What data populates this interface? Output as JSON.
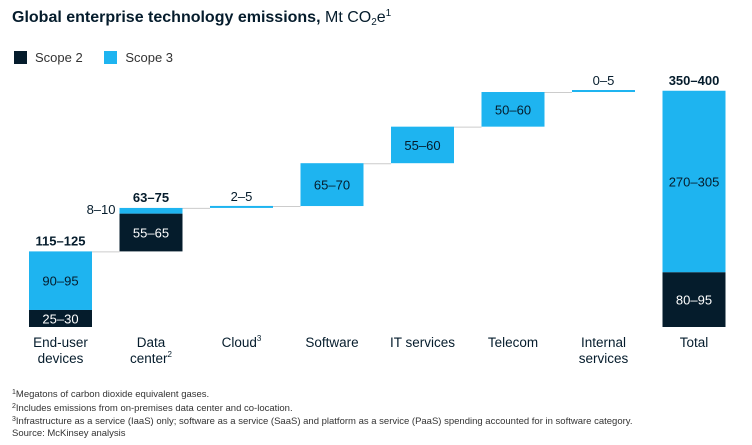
{
  "title": {
    "bold": "Global enterprise technology emissions,",
    "unit_pre": "Mt CO",
    "unit_sub": "2",
    "unit_post": "e",
    "unit_sup": "1"
  },
  "colors": {
    "scope2": "#051c2c",
    "scope3": "#1eb4f0",
    "label_on_dark": "#ffffff",
    "label_on_light": "#051c2c",
    "text": "#051c2c",
    "connector": "#cccccc"
  },
  "chart_data": {
    "type": "bar",
    "subtype": "waterfall",
    "ylim": [
      0,
      400
    ],
    "legend": {
      "placement": "top-left",
      "entries": [
        {
          "key": "scope2",
          "label": "Scope 2"
        },
        {
          "key": "scope3",
          "label": "Scope 3"
        }
      ]
    },
    "categories": [
      {
        "id": "end-user-devices",
        "label_lines": [
          "End-user",
          "devices"
        ],
        "label_sup": "",
        "total_label": "115–125",
        "segments": [
          {
            "series": "scope2",
            "from": 0,
            "to": 27,
            "label": "25–30"
          },
          {
            "series": "scope3",
            "from": 27,
            "to": 120,
            "label": "90–95"
          }
        ]
      },
      {
        "id": "data-center",
        "label_lines": [
          "Data",
          "center"
        ],
        "label_sup": "2",
        "total_label": "63–75",
        "side_label": "8–10",
        "segments": [
          {
            "series": "scope2",
            "from": 120,
            "to": 180,
            "label": "55–65"
          },
          {
            "series": "scope3",
            "from": 180,
            "to": 189,
            "label": ""
          }
        ]
      },
      {
        "id": "cloud",
        "label_lines": [
          "Cloud"
        ],
        "label_sup": "3",
        "segments": [
          {
            "series": "scope3",
            "from": 189,
            "to": 192,
            "label": "2–5"
          }
        ]
      },
      {
        "id": "software",
        "label_lines": [
          "Software"
        ],
        "label_sup": "",
        "segments": [
          {
            "series": "scope3",
            "from": 192,
            "to": 260,
            "label": "65–70"
          }
        ]
      },
      {
        "id": "it-services",
        "label_lines": [
          "IT services"
        ],
        "label_sup": "",
        "segments": [
          {
            "series": "scope3",
            "from": 260,
            "to": 318,
            "label": "55–60"
          }
        ]
      },
      {
        "id": "telecom",
        "label_lines": [
          "Telecom"
        ],
        "label_sup": "",
        "segments": [
          {
            "series": "scope3",
            "from": 318,
            "to": 373,
            "label": "50–60"
          }
        ]
      },
      {
        "id": "internal-services",
        "label_lines": [
          "Internal",
          "services"
        ],
        "label_sup": "",
        "segments": [
          {
            "series": "scope3",
            "from": 373,
            "to": 375,
            "label": "0–5"
          }
        ]
      },
      {
        "id": "total",
        "label_lines": [
          "Total"
        ],
        "label_sup": "",
        "total_label": "350–400",
        "segments": [
          {
            "series": "scope2",
            "from": 0,
            "to": 87,
            "label": "80–95"
          },
          {
            "series": "scope3",
            "from": 87,
            "to": 375,
            "label": "270–305"
          }
        ]
      }
    ]
  },
  "footnotes": [
    {
      "sup": "1",
      "text": "Megatons of carbon dioxide equivalent gases."
    },
    {
      "sup": "2",
      "text": "Includes emissions from on-premises data center and co-location."
    },
    {
      "sup": "3",
      "text": "Infrastructure as a service (IaaS) only; software as a service (SaaS) and platform as a service (PaaS) spending accounted for in software category."
    },
    {
      "sup": "",
      "text": " Source: McKinsey analysis"
    }
  ]
}
